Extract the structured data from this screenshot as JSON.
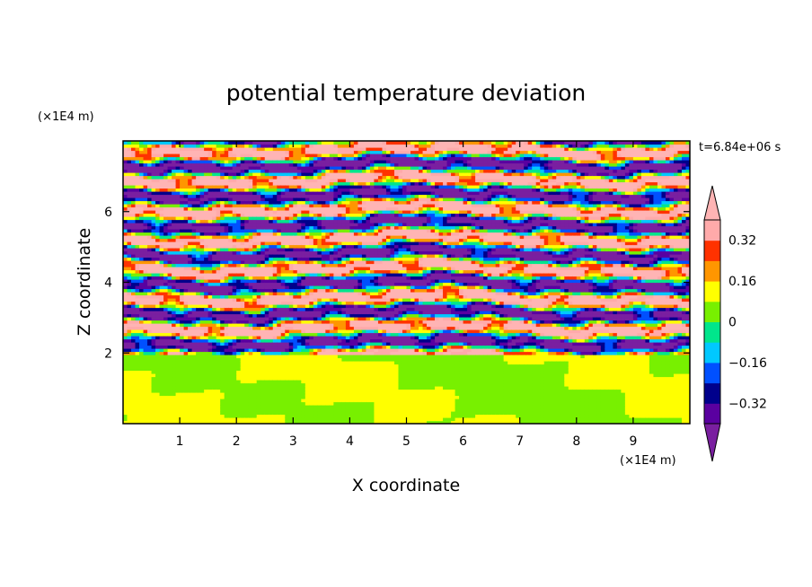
{
  "chart_data": {
    "type": "heatmap",
    "title": "potential temperature deviation",
    "xlabel": "X coordinate",
    "ylabel": "Z coordinate",
    "x_unit": "(×1E4 m)",
    "y_unit": "(×1E4 m)",
    "time_label": "t=6.84e+06 s",
    "xlim": [
      0,
      10
    ],
    "ylim": [
      0,
      8
    ],
    "x_ticks": [
      1,
      2,
      3,
      4,
      5,
      6,
      7,
      8,
      9
    ],
    "y_ticks": [
      2,
      4,
      6
    ],
    "colorbar": {
      "levels": [
        -0.4,
        -0.32,
        -0.24,
        -0.16,
        -0.08,
        0,
        0.08,
        0.16,
        0.24,
        0.32,
        0.4
      ],
      "tick_values": [
        -0.32,
        -0.16,
        0,
        0.16,
        0.32
      ],
      "tick_labels": [
        "−0.32",
        "−0.16",
        "0",
        "0.16",
        "0.32"
      ],
      "colors": [
        "#5a00a0",
        "#00008c",
        "#0050ff",
        "#00c8ff",
        "#00e68c",
        "#78f000",
        "#ffff00",
        "#ff9600",
        "#ff3200",
        "#ffaaaa"
      ],
      "under_color": "#7a1fa0",
      "over_color": "#ffb4b4",
      "extend": "both"
    },
    "regions": [
      {
        "z_range": [
          0,
          2.0
        ],
        "description_values": [
          0.0,
          0.08
        ]
      },
      {
        "z_range": [
          2.0,
          5.0
        ],
        "description_values": [
          -0.4,
          0.4
        ]
      },
      {
        "z_range": [
          5.0,
          8.0
        ],
        "description_values": [
          -0.4,
          0.4
        ]
      }
    ]
  }
}
